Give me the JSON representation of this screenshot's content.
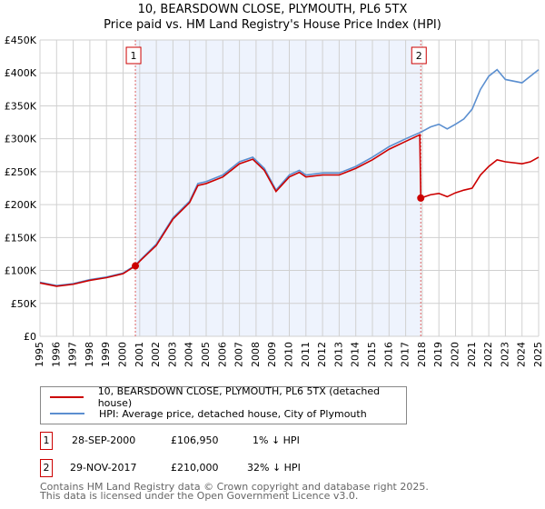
{
  "title": "10, BEARSDOWN CLOSE, PLYMOUTH, PL6 5TX",
  "subtitle": "Price paid vs. HM Land Registry's House Price Index (HPI)",
  "chart_data": {
    "type": "line",
    "xlim": [
      1995,
      2025
    ],
    "ylim": [
      0,
      450000
    ],
    "x_ticks": [
      "1995",
      "1996",
      "1997",
      "1998",
      "1999",
      "2000",
      "2001",
      "2002",
      "2003",
      "2004",
      "2005",
      "2006",
      "2007",
      "2008",
      "2009",
      "2010",
      "2011",
      "2012",
      "2013",
      "2014",
      "2015",
      "2016",
      "2017",
      "2018",
      "2019",
      "2020",
      "2021",
      "2022",
      "2023",
      "2024",
      "2025"
    ],
    "y_ticks": [
      {
        "v": 0,
        "l": "£0"
      },
      {
        "v": 50000,
        "l": "£50K"
      },
      {
        "v": 100000,
        "l": "£100K"
      },
      {
        "v": 150000,
        "l": "£150K"
      },
      {
        "v": 200000,
        "l": "£200K"
      },
      {
        "v": 250000,
        "l": "£250K"
      },
      {
        "v": 300000,
        "l": "£300K"
      },
      {
        "v": 350000,
        "l": "£350K"
      },
      {
        "v": 400000,
        "l": "£400K"
      },
      {
        "v": 450000,
        "l": "£450K"
      }
    ],
    "grid": true,
    "shaded_range": [
      2000.74,
      2017.91
    ],
    "series": [
      {
        "name": "10, BEARSDOWN CLOSE, PLYMOUTH, PL6 5TX (detached house)",
        "color": "#cc0000",
        "x": [
          1995,
          1996,
          1997,
          1998,
          1999,
          2000,
          2000.74,
          2001,
          2002,
          2003,
          2004,
          2004.5,
          2005,
          2006,
          2007,
          2007.8,
          2008.5,
          2009.2,
          2010,
          2010.6,
          2011,
          2012,
          2013,
          2014,
          2015,
          2016,
          2017,
          2017.85,
          2017.91,
          2018.5,
          2019,
          2019.5,
          2020,
          2020.5,
          2021,
          2021.5,
          2022,
          2022.5,
          2023,
          2024,
          2024.5,
          2025
        ],
        "y": [
          81000,
          76000,
          79000,
          85000,
          89000,
          95000,
          106950,
          114000,
          138000,
          178000,
          203000,
          229000,
          232000,
          242000,
          262000,
          269000,
          252000,
          220000,
          242000,
          249000,
          242000,
          245000,
          245000,
          255000,
          268000,
          284000,
          296000,
          306000,
          210000,
          215000,
          217000,
          212000,
          218000,
          222000,
          225000,
          245000,
          258000,
          268000,
          265000,
          262000,
          265000,
          272000
        ]
      },
      {
        "name": "HPI: Average price, detached house, City of Plymouth",
        "color": "#5b8fd0",
        "x": [
          1995,
          1996,
          1997,
          1998,
          1999,
          2000,
          2000.74,
          2001,
          2002,
          2003,
          2004,
          2004.5,
          2005,
          2006,
          2007,
          2007.8,
          2008.5,
          2009.2,
          2010,
          2010.6,
          2011,
          2012,
          2013,
          2014,
          2015,
          2016,
          2017,
          2017.91,
          2018.5,
          2019,
          2019.5,
          2020,
          2020.5,
          2021,
          2021.5,
          2022,
          2022.5,
          2023,
          2024,
          2024.5,
          2025
        ],
        "y": [
          82000,
          77000,
          80000,
          86000,
          90000,
          96000,
          108000,
          115000,
          140000,
          180000,
          205000,
          232000,
          235000,
          245000,
          265000,
          272000,
          255000,
          222000,
          245000,
          252000,
          245000,
          248000,
          248000,
          258000,
          272000,
          288000,
          300000,
          310000,
          318000,
          322000,
          315000,
          322000,
          330000,
          345000,
          375000,
          395000,
          405000,
          390000,
          385000,
          395000,
          405000
        ]
      }
    ],
    "markers": [
      {
        "label": "1",
        "x": 2000.74,
        "y": 106950
      },
      {
        "label": "2",
        "x": 2017.91,
        "y": 210000
      }
    ]
  },
  "legend": [
    "10, BEARSDOWN CLOSE, PLYMOUTH, PL6 5TX (detached house)",
    "HPI: Average price, detached house, City of Plymouth"
  ],
  "sales": [
    {
      "num": "1",
      "date": "28-SEP-2000",
      "price": "£106,950",
      "hpi": "1% ↓ HPI"
    },
    {
      "num": "2",
      "date": "29-NOV-2017",
      "price": "£210,000",
      "hpi": "32% ↓ HPI"
    }
  ],
  "footer": [
    "Contains HM Land Registry data © Crown copyright and database right 2025.",
    "This data is licensed under the Open Government Licence v3.0."
  ]
}
